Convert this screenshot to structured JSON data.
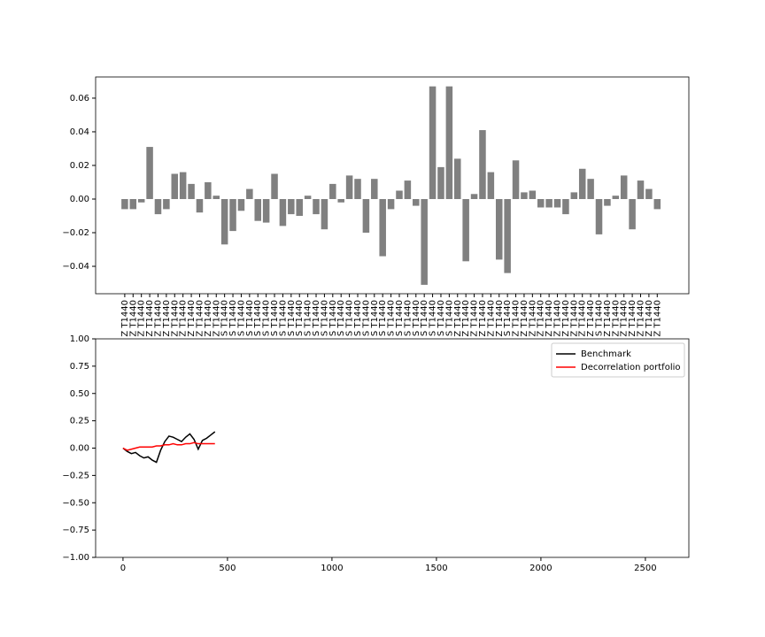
{
  "chart_data": [
    {
      "type": "bar",
      "color": "#808080",
      "categories": [
        "Z T1440",
        "Z T1440",
        "Z T1440",
        "Z T1440",
        "Z T1440",
        "Z T1440",
        "Z T1440",
        "Z T1440",
        "Z T1440",
        "Z T1440",
        "Z T1440",
        "Z T1440",
        "S T1440",
        "S T1440",
        "S T1440",
        "S T1440",
        "S T1440",
        "S T1440",
        "S T1440",
        "S T1440",
        "S T1440",
        "S T1440",
        "S T1440",
        "S T1440",
        "S T1440",
        "S T1440",
        "S T1440",
        "S T1440",
        "S T1440",
        "S T1440",
        "S T1440",
        "S T1440",
        "S T1440",
        "S T1440",
        "S T1440",
        "S T1440",
        "S T1440",
        "S T1440",
        "S T1440",
        "S T1440",
        "Z T1440",
        "Z T1440",
        "Z T1440",
        "Z T1440",
        "Z T1440",
        "Z T1440",
        "S T1440",
        "Z T1440",
        "Z T1440",
        "Z T1440",
        "Z T1440",
        "Z T1440",
        "Z T1440",
        "Z T1440",
        "Z T1440",
        "Z T1440",
        "Z T1440",
        "S T1440",
        "Z T1440",
        "Z T1440",
        "Z T1440",
        "Z T1440",
        "Z T1440",
        "Z T1440",
        "Z T1440"
      ],
      "values": [
        -0.006,
        -0.006,
        -0.002,
        0.031,
        -0.009,
        -0.006,
        0.015,
        0.016,
        0.009,
        -0.008,
        0.01,
        0.002,
        -0.027,
        -0.019,
        -0.007,
        0.006,
        -0.013,
        -0.014,
        0.015,
        -0.016,
        -0.009,
        -0.01,
        0.002,
        -0.009,
        -0.018,
        0.009,
        -0.002,
        0.014,
        0.012,
        -0.02,
        0.012,
        -0.034,
        -0.006,
        0.005,
        0.011,
        -0.004,
        -0.051,
        0.067,
        0.019,
        0.067,
        0.024,
        -0.037,
        0.003,
        0.041,
        0.016,
        -0.036,
        -0.044,
        0.023,
        0.004,
        0.005,
        -0.005,
        -0.005,
        -0.005,
        -0.009,
        0.004,
        0.018,
        0.012,
        -0.021,
        -0.004,
        0.002,
        0.014,
        -0.018,
        0.011,
        0.006,
        -0.006
      ],
      "ylim": [
        -0.0563,
        0.0726
      ],
      "yticks": [
        {
          "value": -0.04,
          "label": "−0.04"
        },
        {
          "value": -0.02,
          "label": "−0.02"
        },
        {
          "value": 0,
          "label": "0.00"
        },
        {
          "value": 0.02,
          "label": "0.02"
        },
        {
          "value": 0.04,
          "label": "0.04"
        },
        {
          "value": 0.06,
          "label": "0.06"
        }
      ]
    },
    {
      "type": "line",
      "x": [
        0,
        20,
        40,
        60,
        80,
        100,
        120,
        140,
        160,
        180,
        200,
        220,
        240,
        260,
        280,
        300,
        320,
        340,
        360,
        380,
        400,
        420,
        440
      ],
      "series": [
        {
          "name": "Benchmark",
          "color": "#000000",
          "values": [
            0,
            -0.03,
            -0.05,
            -0.04,
            -0.07,
            -0.09,
            -0.08,
            -0.11,
            -0.13,
            -0.02,
            0.06,
            0.11,
            0.1,
            0.08,
            0.06,
            0.1,
            0.13,
            0.08,
            -0.01,
            0.07,
            0.09,
            0.12,
            0.15
          ]
        },
        {
          "name": "Decorrelation portfolio",
          "color": "#ff0000",
          "values": [
            0,
            -0.02,
            -0.01,
            0,
            0.01,
            0.01,
            0.01,
            0.01,
            0.02,
            0.02,
            0.03,
            0.03,
            0.04,
            0.03,
            0.03,
            0.04,
            0.04,
            0.05,
            0.04,
            0.04,
            0.04,
            0.04,
            0.04
          ]
        }
      ],
      "xlim": [
        -131,
        2708
      ],
      "xticks": [
        0,
        500,
        1000,
        1500,
        2000,
        2500
      ],
      "ylim": [
        -1,
        1
      ],
      "yticks": [
        {
          "value": -1,
          "label": "−1.00"
        },
        {
          "value": -0.75,
          "label": "−0.75"
        },
        {
          "value": -0.5,
          "label": "−0.50"
        },
        {
          "value": -0.25,
          "label": "−0.25"
        },
        {
          "value": 0,
          "label": "0.00"
        },
        {
          "value": 0.25,
          "label": "0.25"
        },
        {
          "value": 0.5,
          "label": "0.50"
        },
        {
          "value": 0.75,
          "label": "0.75"
        },
        {
          "value": 1,
          "label": "1.00"
        }
      ],
      "legend": "upper right"
    }
  ]
}
